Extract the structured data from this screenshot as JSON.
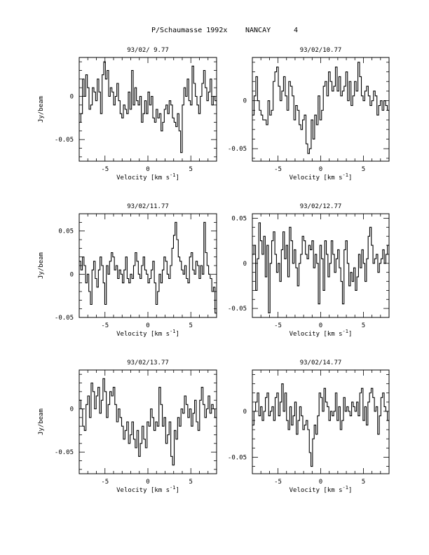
{
  "title": {
    "object": "P/Schaumasse 1992x",
    "site": "NANCAY",
    "page_number": "4"
  },
  "chart_data": [
    {
      "type": "line",
      "title": "93/02/ 9.77",
      "xlabel": "Velocity [km s^-1]",
      "ylabel": "Jy/beam",
      "xlim": [
        -8,
        8
      ],
      "ylim": [
        -0.075,
        0.045
      ],
      "xticks": [
        "-5",
        "0",
        "5"
      ],
      "yticks": [
        {
          "value": 0,
          "label": "0"
        },
        {
          "value": -0.05,
          "label": "-0.05"
        }
      ],
      "series": [
        {
          "values": [
            -0.03,
            -0.02,
            0.02,
            0.0,
            0.025,
            0.01,
            -0.015,
            -0.01,
            0.01,
            0.005,
            -0.005,
            0.02,
            0.005,
            -0.02,
            0.025,
            0.04,
            0.02,
            0.03,
            0.0,
            0.01,
            0.005,
            -0.01,
            0.0,
            0.015,
            -0.005,
            -0.02,
            -0.025,
            -0.01,
            -0.015,
            -0.02,
            0.005,
            -0.015,
            0.03,
            -0.01,
            0.01,
            -0.005,
            -0.01,
            0.0,
            -0.03,
            -0.02,
            -0.005,
            -0.02,
            0.005,
            -0.01,
            0.0,
            -0.025,
            -0.03,
            -0.015,
            -0.025,
            -0.02,
            -0.04,
            -0.03,
            -0.015,
            -0.01,
            -0.02,
            -0.005,
            -0.01,
            -0.025,
            -0.03,
            -0.035,
            -0.02,
            -0.04,
            -0.065,
            -0.01,
            0.01,
            0.0,
            0.02,
            -0.005,
            -0.01,
            0.035,
            0.015,
            0.0,
            -0.01,
            -0.02,
            0.0,
            0.015,
            0.03,
            0.01,
            -0.005,
            0.005,
            0.02,
            -0.01,
            0.0,
            -0.005
          ]
        }
      ]
    },
    {
      "type": "line",
      "title": "93/02/10.77",
      "xlabel": "Velocity [km s^-1]",
      "ylabel": "",
      "xlim": [
        -8,
        8
      ],
      "ylim": [
        -0.063,
        0.045
      ],
      "xticks": [
        "-5",
        "0",
        "5"
      ],
      "yticks": [
        {
          "value": 0,
          "label": "0"
        },
        {
          "value": -0.05,
          "label": "-0.05"
        }
      ],
      "series": [
        {
          "values": [
            -0.015,
            0.005,
            0.025,
            0.0,
            -0.01,
            -0.015,
            -0.02,
            -0.02,
            -0.025,
            0.0,
            -0.015,
            -0.01,
            0.02,
            0.03,
            0.035,
            0.015,
            0.0,
            0.01,
            0.025,
            0.005,
            -0.01,
            0.02,
            0.015,
            0.005,
            -0.02,
            -0.005,
            -0.01,
            -0.025,
            -0.03,
            -0.02,
            -0.015,
            -0.045,
            -0.055,
            -0.05,
            -0.02,
            -0.04,
            -0.015,
            -0.025,
            0.005,
            -0.02,
            -0.01,
            0.015,
            0.02,
            0.005,
            0.03,
            0.02,
            0.01,
            0.015,
            0.035,
            0.01,
            0.025,
            0.005,
            0.01,
            0.015,
            0.03,
            0.0,
            0.02,
            -0.005,
            0.005,
            0.02,
            0.01,
            0.04,
            0.025,
            0.005,
            0.0,
            0.01,
            0.015,
            0.005,
            -0.005,
            0.0,
            0.01,
            0.005,
            -0.015,
            -0.005,
            0.0,
            -0.01,
            0.0,
            -0.005,
            -0.01
          ]
        }
      ]
    },
    {
      "type": "line",
      "title": "93/02/11.77",
      "xlabel": "Velocity [km s^-1]",
      "ylabel": "Jy/beam",
      "xlim": [
        -8,
        8
      ],
      "ylim": [
        -0.05,
        0.07
      ],
      "xticks": [
        "-5",
        "0",
        "5"
      ],
      "yticks": [
        {
          "value": 0.05,
          "label": "0.05"
        },
        {
          "value": 0,
          "label": "0"
        },
        {
          "value": -0.05,
          "label": "-0.05"
        }
      ],
      "series": [
        {
          "values": [
            0.015,
            0.005,
            0.02,
            0.01,
            -0.01,
            0.0,
            -0.02,
            -0.035,
            0.005,
            0.015,
            -0.005,
            -0.015,
            0.005,
            0.02,
            0.01,
            -0.01,
            -0.035,
            0.01,
            0.0,
            0.015,
            0.025,
            0.02,
            0.005,
            0.01,
            -0.005,
            0.005,
            0.0,
            -0.01,
            0.005,
            0.02,
            -0.005,
            -0.01,
            0.0,
            -0.005,
            0.01,
            0.025,
            0.015,
            0.0,
            -0.005,
            0.01,
            0.02,
            0.005,
            0.0,
            -0.01,
            -0.005,
            0.005,
            0.015,
            -0.01,
            -0.035,
            -0.02,
            0.0,
            -0.01,
            0.005,
            0.02,
            0.015,
            0.0,
            -0.005,
            0.01,
            0.03,
            0.045,
            0.06,
            0.04,
            0.02,
            0.015,
            0.005,
            0.0,
            0.01,
            -0.005,
            -0.01,
            0.02,
            0.025,
            0.005,
            0.0,
            0.015,
            0.01,
            -0.005,
            0.01,
            0.0,
            0.06,
            0.025,
            0.01,
            0.0,
            -0.005,
            -0.02,
            -0.015,
            -0.045
          ]
        }
      ]
    },
    {
      "type": "line",
      "title": "93/02/12.77",
      "xlabel": "Velocity [km s^-1]",
      "ylabel": "",
      "xlim": [
        -8,
        8
      ],
      "ylim": [
        -0.06,
        0.055
      ],
      "xticks": [
        "-5",
        "0",
        "5"
      ],
      "yticks": [
        {
          "value": 0.05,
          "label": "0.05"
        },
        {
          "value": 0,
          "label": "0"
        },
        {
          "value": -0.05,
          "label": "-0.05"
        }
      ],
      "series": [
        {
          "values": [
            0.01,
            0.02,
            -0.03,
            0.005,
            0.045,
            0.025,
            0.01,
            0.03,
            -0.015,
            0.02,
            -0.055,
            0.0,
            0.025,
            0.035,
            0.01,
            -0.01,
            0.0,
            -0.02,
            0.015,
            0.035,
            0.005,
            0.02,
            -0.015,
            0.04,
            0.025,
            0.0,
            0.015,
            -0.005,
            -0.025,
            0.0,
            0.01,
            0.03,
            0.025,
            0.01,
            0.005,
            0.02,
            0.015,
            0.025,
            -0.005,
            0.01,
            0.0,
            -0.045,
            0.02,
            0.005,
            -0.03,
            0.025,
            0.01,
            -0.015,
            0.0,
            0.025,
            0.01,
            -0.01,
            0.005,
            0.015,
            -0.005,
            -0.02,
            -0.045,
            0.015,
            0.025,
            0.0,
            -0.025,
            -0.01,
            -0.02,
            -0.005,
            -0.03,
            -0.015,
            0.01,
            -0.005,
            0.015,
            0.0,
            -0.02,
            0.005,
            0.03,
            0.04,
            0.02,
            0.0,
            0.005,
            0.01,
            -0.01,
            0.0,
            0.005,
            0.015,
            0.0,
            0.01,
            0.02
          ]
        }
      ]
    },
    {
      "type": "line",
      "title": "93/02/13.77",
      "xlabel": "Velocity [km s^-1]",
      "ylabel": "Jy/beam",
      "xlim": [
        -8,
        8
      ],
      "ylim": [
        -0.075,
        0.045
      ],
      "xticks": [
        "-5",
        "0",
        "5"
      ],
      "yticks": [
        {
          "value": 0,
          "label": "0"
        },
        {
          "value": -0.05,
          "label": "-0.05"
        }
      ],
      "series": [
        {
          "values": [
            0.01,
            0.0,
            -0.02,
            -0.025,
            0.005,
            0.015,
            -0.01,
            0.03,
            0.02,
            0.0,
            0.015,
            0.025,
            -0.005,
            0.01,
            0.035,
            0.02,
            -0.01,
            0.005,
            0.02,
            0.015,
            0.025,
            0.005,
            -0.015,
            0.0,
            -0.01,
            -0.02,
            -0.035,
            -0.025,
            -0.015,
            -0.04,
            -0.03,
            -0.015,
            -0.035,
            -0.045,
            -0.025,
            -0.055,
            -0.04,
            -0.02,
            -0.035,
            -0.045,
            -0.015,
            -0.02,
            0.0,
            -0.01,
            -0.025,
            -0.015,
            -0.02,
            0.025,
            0.005,
            -0.02,
            -0.01,
            -0.04,
            -0.03,
            -0.015,
            -0.055,
            -0.065,
            -0.025,
            -0.035,
            -0.01,
            -0.02,
            0.0,
            -0.005,
            0.015,
            0.005,
            -0.01,
            0.0,
            -0.02,
            -0.005,
            0.01,
            -0.015,
            -0.025,
            0.01,
            0.025,
            0.005,
            -0.01,
            0.0,
            0.015,
            -0.005,
            0.005,
            0.0,
            -0.01
          ]
        }
      ]
    },
    {
      "type": "line",
      "title": "93/02/14.77",
      "xlabel": "Velocity [km s^-1]",
      "ylabel": "",
      "xlim": [
        -8,
        8
      ],
      "ylim": [
        -0.068,
        0.045
      ],
      "xticks": [
        "-5",
        "0",
        "5"
      ],
      "yticks": [
        {
          "value": 0,
          "label": "0"
        },
        {
          "value": -0.05,
          "label": "-0.05"
        }
      ],
      "series": [
        {
          "values": [
            -0.015,
            0.0,
            0.01,
            0.02,
            -0.005,
            0.005,
            -0.01,
            0.0,
            0.015,
            0.02,
            -0.005,
            0.0,
            0.005,
            -0.01,
            0.015,
            0.02,
            -0.005,
            0.01,
            0.03,
            0.0,
            0.02,
            -0.01,
            -0.02,
            0.005,
            -0.015,
            -0.005,
            0.01,
            -0.025,
            -0.01,
            0.005,
            -0.005,
            -0.02,
            -0.015,
            -0.01,
            -0.02,
            -0.045,
            -0.06,
            -0.03,
            -0.015,
            -0.025,
            -0.005,
            0.02,
            0.015,
            0.0,
            0.025,
            0.01,
            0.005,
            -0.01,
            0.0,
            -0.005,
            0.0,
            0.02,
            -0.01,
            0.005,
            -0.02,
            -0.01,
            0.015,
            0.0,
            0.005,
            0.0,
            -0.005,
            0.01,
            0.005,
            0.0,
            0.01,
            -0.005,
            0.02,
            0.025,
            -0.01,
            0.005,
            -0.015,
            0.01,
            0.02,
            0.025,
            0.015,
            0.0,
            0.005,
            -0.025,
            -0.005,
            0.015,
            0.02,
            0.005,
            0.0,
            -0.01
          ]
        }
      ]
    }
  ]
}
